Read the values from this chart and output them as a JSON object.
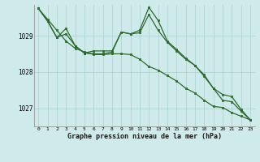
{
  "background_color": "#ceeaea",
  "grid_color": "#aacfcf",
  "line_color": "#2d6a2d",
  "xlabel": "Graphe pression niveau de la mer (hPa)",
  "ylim": [
    1026.5,
    1029.85
  ],
  "xlim": [
    -0.5,
    23.5
  ],
  "yticks": [
    1027,
    1028,
    1029
  ],
  "xticks": [
    0,
    1,
    2,
    3,
    4,
    5,
    6,
    7,
    8,
    9,
    10,
    11,
    12,
    13,
    14,
    15,
    16,
    17,
    18,
    19,
    20,
    21,
    22,
    23
  ],
  "series1": [
    1029.75,
    1029.45,
    1029.15,
    1028.85,
    1028.65,
    1028.55,
    1028.48,
    1028.48,
    1028.5,
    1028.5,
    1028.48,
    1028.35,
    1028.15,
    1028.05,
    1027.9,
    1027.75,
    1027.55,
    1027.42,
    1027.22,
    1027.05,
    1027.02,
    1026.88,
    1026.78,
    1026.68
  ],
  "series2": [
    1029.75,
    1029.4,
    1028.95,
    1029.05,
    1028.72,
    1028.52,
    1028.5,
    1028.5,
    1028.55,
    1029.1,
    1029.05,
    1029.08,
    1029.58,
    1029.15,
    1028.82,
    1028.58,
    1028.35,
    1028.18,
    1027.88,
    1027.55,
    1027.22,
    1027.18,
    1026.92,
    1026.68
  ],
  "series3": [
    1029.75,
    1029.4,
    1028.95,
    1029.2,
    1028.72,
    1028.52,
    1028.58,
    1028.58,
    1028.58,
    1029.1,
    1029.05,
    1029.15,
    1029.78,
    1029.42,
    1028.85,
    1028.62,
    1028.38,
    1028.18,
    1027.92,
    1027.55,
    1027.38,
    1027.32,
    1026.97,
    1026.68
  ]
}
